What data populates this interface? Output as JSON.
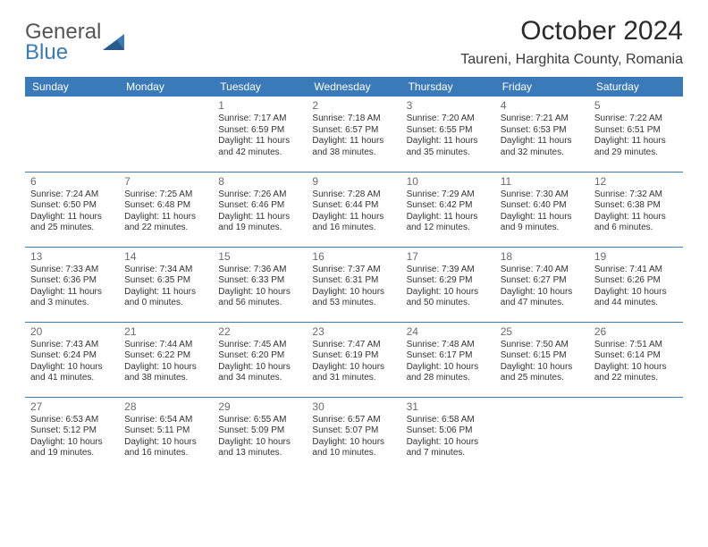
{
  "logo": {
    "text1": "General",
    "text2": "Blue"
  },
  "title": "October 2024",
  "location": "Taureni, Harghita County, Romania",
  "colors": {
    "accent": "#3a7ab8",
    "header_bg": "#3a7ab8",
    "header_text": "#ffffff",
    "body_text": "#333333",
    "daynum": "#6a6a6a"
  },
  "day_headers": [
    "Sunday",
    "Monday",
    "Tuesday",
    "Wednesday",
    "Thursday",
    "Friday",
    "Saturday"
  ],
  "weeks": [
    [
      null,
      null,
      {
        "n": "1",
        "sr": "Sunrise: 7:17 AM",
        "ss": "Sunset: 6:59 PM",
        "d1": "Daylight: 11 hours",
        "d2": "and 42 minutes."
      },
      {
        "n": "2",
        "sr": "Sunrise: 7:18 AM",
        "ss": "Sunset: 6:57 PM",
        "d1": "Daylight: 11 hours",
        "d2": "and 38 minutes."
      },
      {
        "n": "3",
        "sr": "Sunrise: 7:20 AM",
        "ss": "Sunset: 6:55 PM",
        "d1": "Daylight: 11 hours",
        "d2": "and 35 minutes."
      },
      {
        "n": "4",
        "sr": "Sunrise: 7:21 AM",
        "ss": "Sunset: 6:53 PM",
        "d1": "Daylight: 11 hours",
        "d2": "and 32 minutes."
      },
      {
        "n": "5",
        "sr": "Sunrise: 7:22 AM",
        "ss": "Sunset: 6:51 PM",
        "d1": "Daylight: 11 hours",
        "d2": "and 29 minutes."
      }
    ],
    [
      {
        "n": "6",
        "sr": "Sunrise: 7:24 AM",
        "ss": "Sunset: 6:50 PM",
        "d1": "Daylight: 11 hours",
        "d2": "and 25 minutes."
      },
      {
        "n": "7",
        "sr": "Sunrise: 7:25 AM",
        "ss": "Sunset: 6:48 PM",
        "d1": "Daylight: 11 hours",
        "d2": "and 22 minutes."
      },
      {
        "n": "8",
        "sr": "Sunrise: 7:26 AM",
        "ss": "Sunset: 6:46 PM",
        "d1": "Daylight: 11 hours",
        "d2": "and 19 minutes."
      },
      {
        "n": "9",
        "sr": "Sunrise: 7:28 AM",
        "ss": "Sunset: 6:44 PM",
        "d1": "Daylight: 11 hours",
        "d2": "and 16 minutes."
      },
      {
        "n": "10",
        "sr": "Sunrise: 7:29 AM",
        "ss": "Sunset: 6:42 PM",
        "d1": "Daylight: 11 hours",
        "d2": "and 12 minutes."
      },
      {
        "n": "11",
        "sr": "Sunrise: 7:30 AM",
        "ss": "Sunset: 6:40 PM",
        "d1": "Daylight: 11 hours",
        "d2": "and 9 minutes."
      },
      {
        "n": "12",
        "sr": "Sunrise: 7:32 AM",
        "ss": "Sunset: 6:38 PM",
        "d1": "Daylight: 11 hours",
        "d2": "and 6 minutes."
      }
    ],
    [
      {
        "n": "13",
        "sr": "Sunrise: 7:33 AM",
        "ss": "Sunset: 6:36 PM",
        "d1": "Daylight: 11 hours",
        "d2": "and 3 minutes."
      },
      {
        "n": "14",
        "sr": "Sunrise: 7:34 AM",
        "ss": "Sunset: 6:35 PM",
        "d1": "Daylight: 11 hours",
        "d2": "and 0 minutes."
      },
      {
        "n": "15",
        "sr": "Sunrise: 7:36 AM",
        "ss": "Sunset: 6:33 PM",
        "d1": "Daylight: 10 hours",
        "d2": "and 56 minutes."
      },
      {
        "n": "16",
        "sr": "Sunrise: 7:37 AM",
        "ss": "Sunset: 6:31 PM",
        "d1": "Daylight: 10 hours",
        "d2": "and 53 minutes."
      },
      {
        "n": "17",
        "sr": "Sunrise: 7:39 AM",
        "ss": "Sunset: 6:29 PM",
        "d1": "Daylight: 10 hours",
        "d2": "and 50 minutes."
      },
      {
        "n": "18",
        "sr": "Sunrise: 7:40 AM",
        "ss": "Sunset: 6:27 PM",
        "d1": "Daylight: 10 hours",
        "d2": "and 47 minutes."
      },
      {
        "n": "19",
        "sr": "Sunrise: 7:41 AM",
        "ss": "Sunset: 6:26 PM",
        "d1": "Daylight: 10 hours",
        "d2": "and 44 minutes."
      }
    ],
    [
      {
        "n": "20",
        "sr": "Sunrise: 7:43 AM",
        "ss": "Sunset: 6:24 PM",
        "d1": "Daylight: 10 hours",
        "d2": "and 41 minutes."
      },
      {
        "n": "21",
        "sr": "Sunrise: 7:44 AM",
        "ss": "Sunset: 6:22 PM",
        "d1": "Daylight: 10 hours",
        "d2": "and 38 minutes."
      },
      {
        "n": "22",
        "sr": "Sunrise: 7:45 AM",
        "ss": "Sunset: 6:20 PM",
        "d1": "Daylight: 10 hours",
        "d2": "and 34 minutes."
      },
      {
        "n": "23",
        "sr": "Sunrise: 7:47 AM",
        "ss": "Sunset: 6:19 PM",
        "d1": "Daylight: 10 hours",
        "d2": "and 31 minutes."
      },
      {
        "n": "24",
        "sr": "Sunrise: 7:48 AM",
        "ss": "Sunset: 6:17 PM",
        "d1": "Daylight: 10 hours",
        "d2": "and 28 minutes."
      },
      {
        "n": "25",
        "sr": "Sunrise: 7:50 AM",
        "ss": "Sunset: 6:15 PM",
        "d1": "Daylight: 10 hours",
        "d2": "and 25 minutes."
      },
      {
        "n": "26",
        "sr": "Sunrise: 7:51 AM",
        "ss": "Sunset: 6:14 PM",
        "d1": "Daylight: 10 hours",
        "d2": "and 22 minutes."
      }
    ],
    [
      {
        "n": "27",
        "sr": "Sunrise: 6:53 AM",
        "ss": "Sunset: 5:12 PM",
        "d1": "Daylight: 10 hours",
        "d2": "and 19 minutes."
      },
      {
        "n": "28",
        "sr": "Sunrise: 6:54 AM",
        "ss": "Sunset: 5:11 PM",
        "d1": "Daylight: 10 hours",
        "d2": "and 16 minutes."
      },
      {
        "n": "29",
        "sr": "Sunrise: 6:55 AM",
        "ss": "Sunset: 5:09 PM",
        "d1": "Daylight: 10 hours",
        "d2": "and 13 minutes."
      },
      {
        "n": "30",
        "sr": "Sunrise: 6:57 AM",
        "ss": "Sunset: 5:07 PM",
        "d1": "Daylight: 10 hours",
        "d2": "and 10 minutes."
      },
      {
        "n": "31",
        "sr": "Sunrise: 6:58 AM",
        "ss": "Sunset: 5:06 PM",
        "d1": "Daylight: 10 hours",
        "d2": "and 7 minutes."
      },
      null,
      null
    ]
  ]
}
